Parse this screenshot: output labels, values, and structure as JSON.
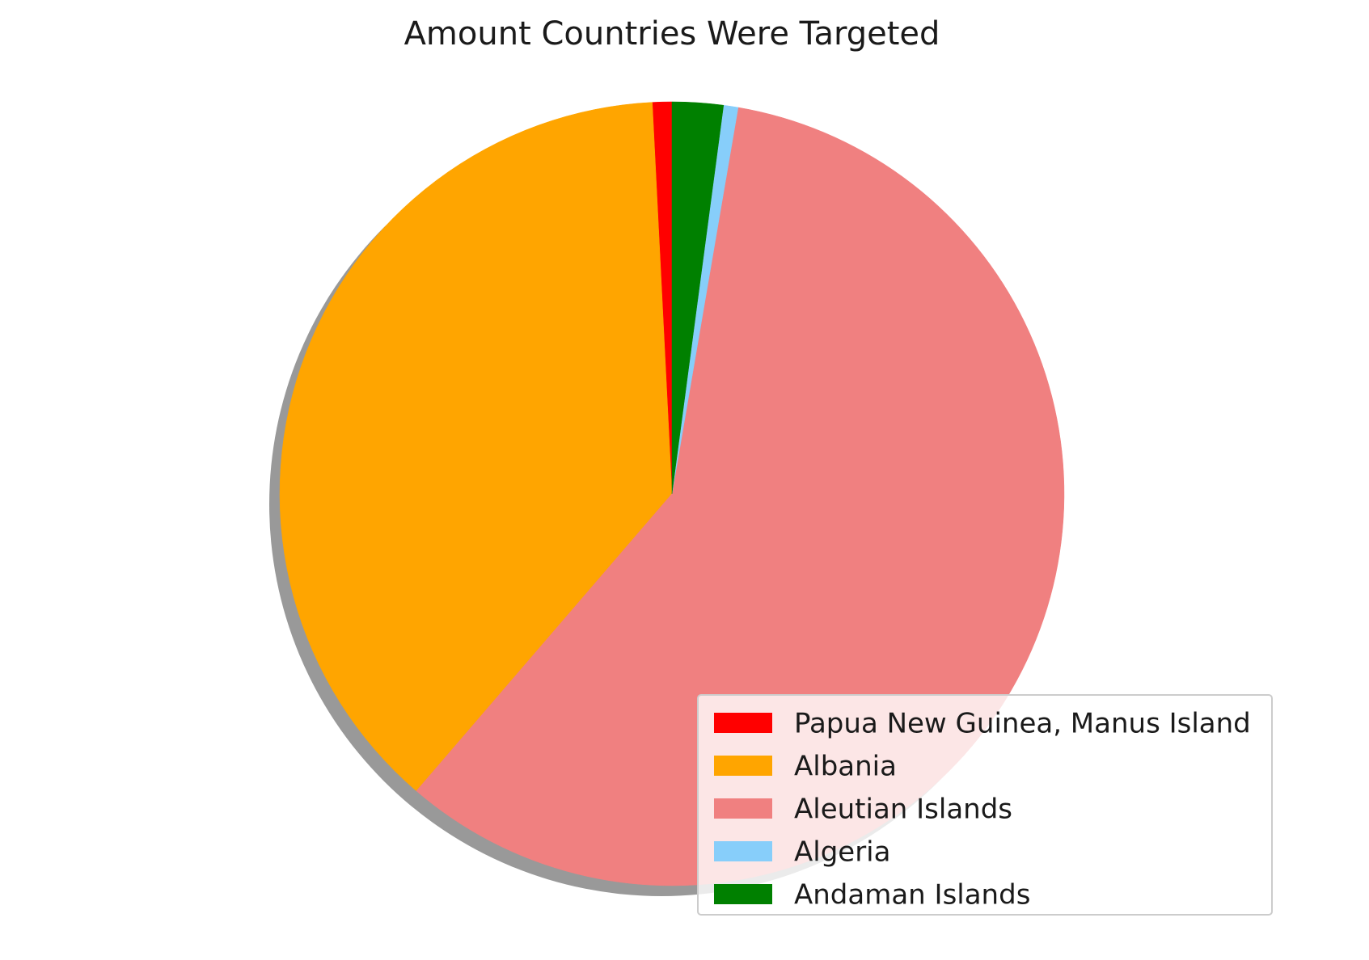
{
  "chart_data": {
    "type": "pie",
    "title": "Amount Countries Were Targeted",
    "shadow": true,
    "start_angle_deg": 90,
    "direction": "counterclockwise",
    "legend_position": "lower-right",
    "slices": [
      {
        "label": "Papua New Guinea, Manus Island",
        "value": 0.8,
        "color": "#ff0000"
      },
      {
        "label": "Albania",
        "value": 37.9,
        "color": "#ffa500"
      },
      {
        "label": "Aleutian Islands",
        "value": 58.6,
        "color": "#f08080"
      },
      {
        "label": "Algeria",
        "value": 0.6,
        "color": "#87cefa"
      },
      {
        "label": "Andaman Islands",
        "value": 2.1,
        "color": "#008000"
      }
    ]
  }
}
